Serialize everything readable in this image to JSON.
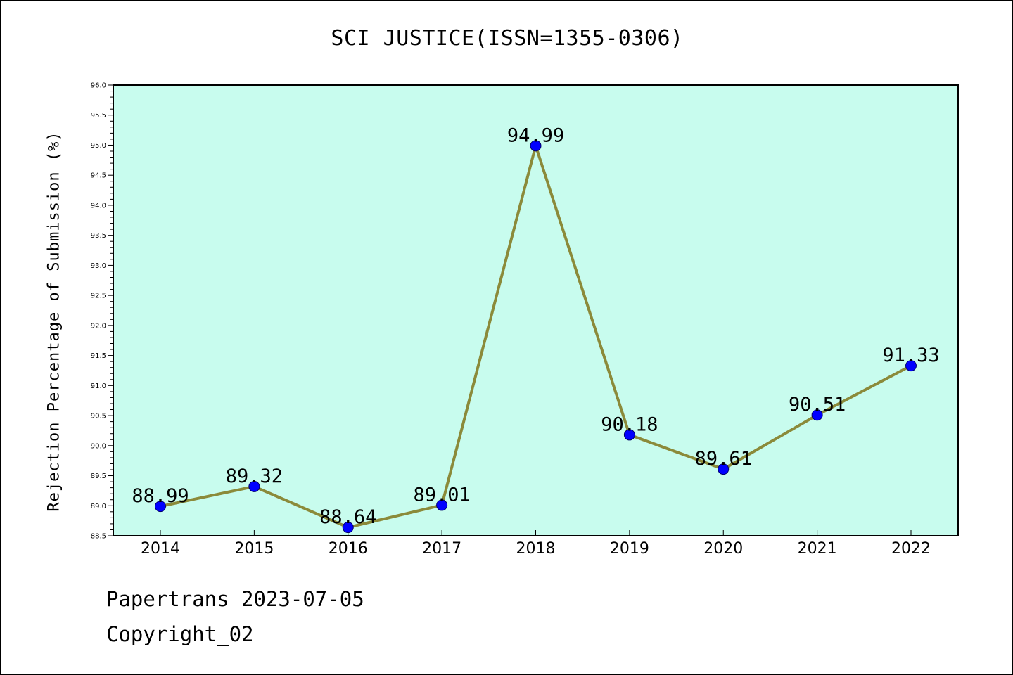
{
  "chart_data": {
    "type": "line",
    "title": "SCI JUSTICE(ISSN=1355-0306)",
    "xlabel": "",
    "ylabel": "Rejection Percentage of Submission (%)",
    "categories": [
      "2014",
      "2015",
      "2016",
      "2017",
      "2018",
      "2019",
      "2020",
      "2021",
      "2022"
    ],
    "series": [
      {
        "values": [
          88.99,
          89.32,
          88.64,
          89.01,
          94.99,
          90.18,
          89.61,
          90.51,
          91.33
        ]
      }
    ],
    "data_labels": [
      "88.99",
      "89.32",
      "88.64",
      "89.01",
      "94.99",
      "90.18",
      "89.61",
      "90.51",
      "91.33"
    ],
    "ylim": [
      88.5,
      96.0
    ],
    "y_tick_labels": [
      "88.5",
      "89.0",
      "89.5",
      "90.0",
      "90.5",
      "91.0",
      "91.5",
      "92.0",
      "92.5",
      "93.0",
      "93.5",
      "94.0",
      "94.5",
      "95.0",
      "95.5",
      "96.0"
    ],
    "grid": false,
    "colors": {
      "plot_background": "#c8fcee",
      "line": "#8b8a3a",
      "marker": "#0000ff"
    }
  },
  "footer": {
    "line1": "Papertrans 2023-07-05",
    "line2": "Copyright_02"
  }
}
